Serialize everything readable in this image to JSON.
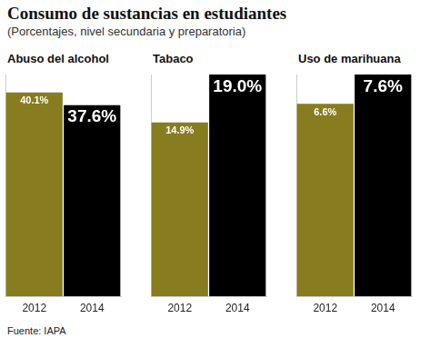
{
  "title": "Consumo de sustancias en estudiantes",
  "subtitle": "(Porcentajes, nivel secundaria y preparatoria)",
  "source": "Fuente: IAPA",
  "chart_data": [
    {
      "type": "bar",
      "title": "Abuso del alcohol",
      "categories": [
        "2012",
        "2014"
      ],
      "values": [
        40.1,
        37.6
      ],
      "value_labels": [
        "40.1%",
        "37.6%"
      ],
      "colors": [
        "#877c1f",
        "#000000"
      ],
      "ylim": [
        0,
        43.6
      ],
      "data_labels": true,
      "tick_labels": "x",
      "grid": false
    },
    {
      "type": "bar",
      "title": "Tabaco",
      "categories": [
        "2012",
        "2014"
      ],
      "values": [
        14.9,
        19.0
      ],
      "value_labels": [
        "14.9%",
        "19.0%"
      ],
      "colors": [
        "#877c1f",
        "#000000"
      ],
      "ylim": [
        0,
        19.0
      ],
      "data_labels": true,
      "tick_labels": "x",
      "grid": false
    },
    {
      "type": "bar",
      "title": "Uso de marihuana",
      "categories": [
        "2012",
        "2014"
      ],
      "values": [
        6.6,
        7.6
      ],
      "value_labels": [
        "6.6%",
        "7.6%"
      ],
      "colors": [
        "#877c1f",
        "#000000"
      ],
      "ylim": [
        0,
        7.6
      ],
      "data_labels": true,
      "tick_labels": "x",
      "grid": false
    }
  ]
}
